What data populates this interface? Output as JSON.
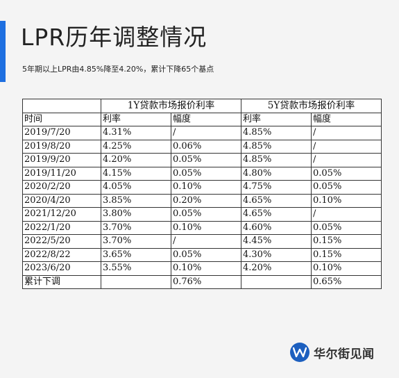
{
  "header": {
    "title": "LPR历年调整情况",
    "subtitle": "5年期以上LPR由4.85%降至4.20%，累计下降65个基点"
  },
  "table": {
    "group_headers": [
      "1Y贷款市场报价利率",
      "5Y贷款市场报价利率"
    ],
    "column_headers": [
      "时间",
      "利率",
      "幅度",
      "利率",
      "幅度"
    ],
    "rows": [
      [
        "2019/7/20",
        "4.31%",
        "/",
        "4.85%",
        "/"
      ],
      [
        "2019/8/20",
        "4.25%",
        "0.06%",
        "4.85%",
        "/"
      ],
      [
        "2019/9/20",
        "4.20%",
        "0.05%",
        "4.85%",
        "/"
      ],
      [
        "2019/11/20",
        "4.15%",
        "0.05%",
        "4.80%",
        "0.05%"
      ],
      [
        "2020/2/20",
        "4.05%",
        "0.10%",
        "4.75%",
        "0.05%"
      ],
      [
        "2020/4/20",
        "3.85%",
        "0.20%",
        "4.65%",
        "0.10%"
      ],
      [
        "2021/12/20",
        "3.80%",
        "0.05%",
        "4.65%",
        "/"
      ],
      [
        "2022/1/20",
        "3.70%",
        "0.10%",
        "4.60%",
        "0.05%"
      ],
      [
        "2022/5/20",
        "3.70%",
        "/",
        "4.45%",
        "0.15%"
      ],
      [
        "2022/8/22",
        "3.65%",
        "0.05%",
        "4.30%",
        "0.15%"
      ],
      [
        "2023/6/20",
        "3.55%",
        "0.10%",
        "4.20%",
        "0.10%"
      ]
    ],
    "total_row": [
      "累计下调",
      "",
      "0.76%",
      "",
      "0.65%"
    ]
  },
  "brand": {
    "name": "华尔街见闻",
    "accent_color": "#1e6fe0",
    "logo_color": "#1c5fbf",
    "logo_icon": "wallstreetcn-logo-icon"
  }
}
